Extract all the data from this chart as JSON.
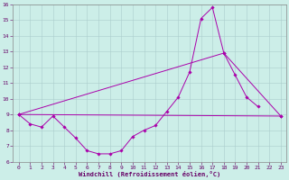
{
  "title": "",
  "xlabel": "Windchill (Refroidissement éolien,°C)",
  "ylabel": "",
  "background_color": "#cceee8",
  "grid_color": "#aacccc",
  "line_color": "#aa00aa",
  "x": [
    0,
    1,
    2,
    3,
    4,
    5,
    6,
    7,
    8,
    9,
    10,
    11,
    12,
    13,
    14,
    15,
    16,
    17,
    18,
    19,
    20,
    21,
    22,
    23
  ],
  "line1": [
    9.0,
    8.4,
    8.2,
    8.9,
    8.2,
    7.5,
    6.7,
    6.5,
    6.5,
    6.7,
    7.6,
    8.0,
    8.3,
    9.2,
    10.1,
    11.7,
    15.1,
    15.8,
    12.9,
    11.5,
    10.1,
    9.5,
    null,
    null
  ],
  "line2_x": [
    0,
    18,
    23
  ],
  "line2_y": [
    9.0,
    12.9,
    8.9
  ],
  "line3_x": [
    0,
    23
  ],
  "line3_y": [
    9.0,
    8.9
  ],
  "ylim": [
    6,
    16
  ],
  "xlim": [
    -0.5,
    23.5
  ],
  "yticks": [
    6,
    7,
    8,
    9,
    10,
    11,
    12,
    13,
    14,
    15,
    16
  ],
  "xticks": [
    0,
    1,
    2,
    3,
    4,
    5,
    6,
    7,
    8,
    9,
    10,
    11,
    12,
    13,
    14,
    15,
    16,
    17,
    18,
    19,
    20,
    21,
    22,
    23
  ]
}
